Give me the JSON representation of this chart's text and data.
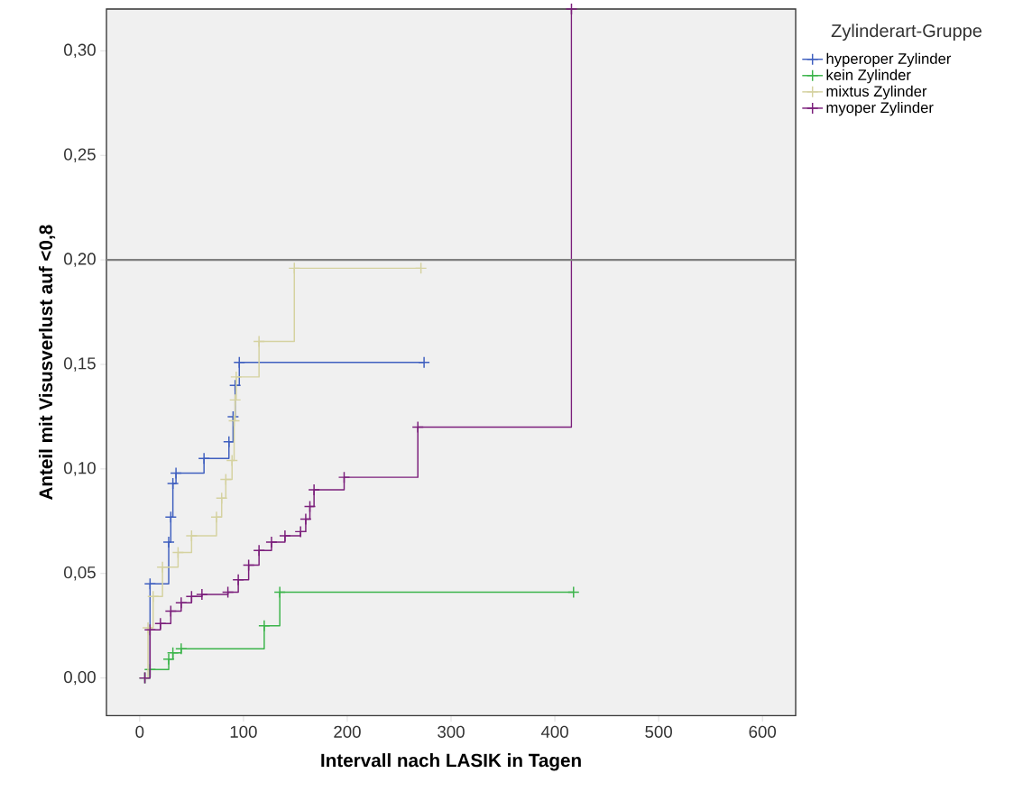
{
  "chart_data": {
    "type": "step",
    "xlabel": "Intervall nach LASIK in Tagen",
    "ylabel": "Anteil mit Visusverlust auf <0,8",
    "legend_title": "Zylinderart-Gruppe",
    "xlim": [
      -32,
      632
    ],
    "ylim": [
      -0.018,
      0.32
    ],
    "xticks": [
      0,
      100,
      200,
      300,
      400,
      500,
      600
    ],
    "yticks": [
      {
        "value": 0,
        "label": "0,00"
      },
      {
        "value": 0.05,
        "label": "0,05"
      },
      {
        "value": 0.1,
        "label": "0,10"
      },
      {
        "value": 0.15,
        "label": "0,15"
      },
      {
        "value": 0.2,
        "label": "0,20"
      },
      {
        "value": 0.25,
        "label": "0,25"
      },
      {
        "value": 0.3,
        "label": "0,30"
      }
    ],
    "ref_lines": [
      {
        "axis": "y",
        "value": 0.2,
        "color": "#7f7f7f"
      }
    ],
    "legend": "top right",
    "marker": "cross",
    "grid": false,
    "series": [
      {
        "name": "hyperoper Zylinder",
        "color": "#3f5fbf",
        "x": [
          5,
          10,
          28,
          30,
          32,
          35,
          62,
          86,
          90,
          92,
          96,
          274
        ],
        "values": [
          0,
          0.045,
          0.065,
          0.077,
          0.093,
          0.098,
          0.105,
          0.113,
          0.125,
          0.14,
          0.151,
          0.151
        ]
      },
      {
        "name": "kein Zylinder",
        "color": "#3cb44b",
        "x": [
          5,
          10,
          28,
          32,
          40,
          120,
          135,
          418
        ],
        "values": [
          0,
          0.004,
          0.009,
          0.012,
          0.014,
          0.025,
          0.041,
          0.041
        ]
      },
      {
        "name": "mixtus Zylinder",
        "color": "#d5d2a0",
        "x": [
          5,
          8,
          13,
          22,
          37,
          50,
          74,
          79,
          83,
          89,
          91,
          92,
          93,
          115,
          149,
          271
        ],
        "values": [
          0,
          0.024,
          0.039,
          0.053,
          0.06,
          0.068,
          0.077,
          0.086,
          0.095,
          0.104,
          0.123,
          0.133,
          0.144,
          0.161,
          0.196,
          0.196
        ]
      },
      {
        "name": "myoper Zylinder",
        "color": "#7b1f7b",
        "x": [
          5,
          10,
          20,
          30,
          40,
          50,
          60,
          85,
          95,
          105,
          115,
          127,
          140,
          155,
          160,
          164,
          168,
          197,
          268,
          416
        ],
        "values": [
          0,
          0.023,
          0.026,
          0.032,
          0.036,
          0.039,
          0.04,
          0.041,
          0.047,
          0.054,
          0.061,
          0.065,
          0.068,
          0.07,
          0.076,
          0.082,
          0.09,
          0.096,
          0.12,
          0.32
        ]
      }
    ]
  }
}
